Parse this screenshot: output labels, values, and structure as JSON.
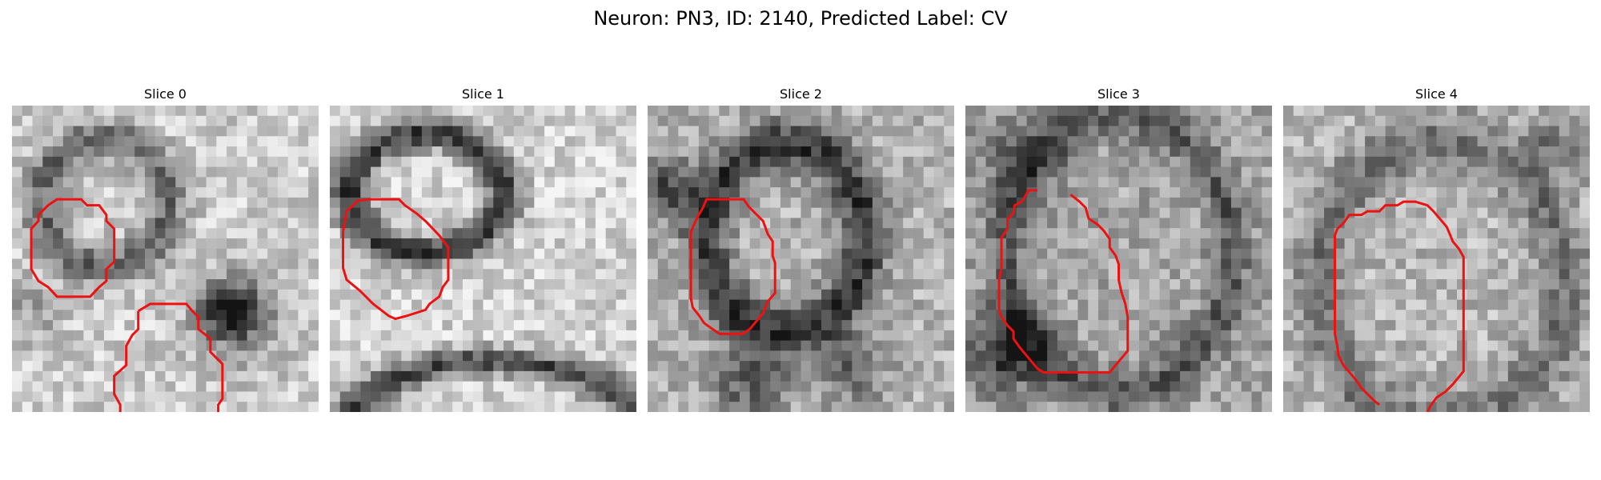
{
  "figure": {
    "title": "Neuron: PN3, ID: 2140, Predicted Label: CV"
  },
  "slices": [
    {
      "label": "Slice 0"
    },
    {
      "label": "Slice 1"
    },
    {
      "label": "Slice 2"
    },
    {
      "label": "Slice 3"
    },
    {
      "label": "Slice 4"
    }
  ],
  "colors": {
    "contour": "#ee1111",
    "background": "#ffffff"
  },
  "image": {
    "colormap": "grayscale",
    "grid_resolution": "30x30"
  }
}
